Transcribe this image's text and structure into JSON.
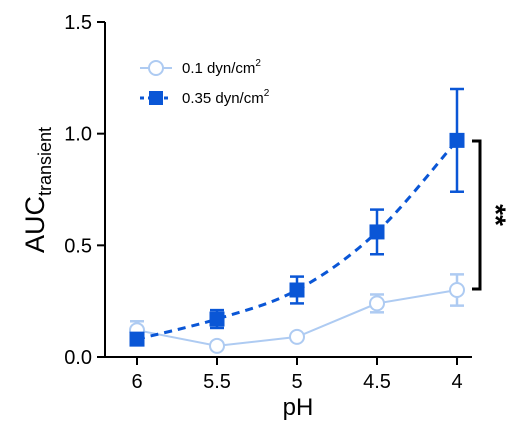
{
  "chart_data": {
    "type": "line",
    "categories": [
      "6",
      "5.5",
      "5",
      "4.5",
      "4"
    ],
    "xlabel": "pH",
    "ylabel": {
      "main": "AUC",
      "subscript": "transient"
    },
    "ylim": [
      0,
      1.5
    ],
    "yticks": [
      "0.0",
      "0.5",
      "1.0",
      "1.5"
    ],
    "grid": false,
    "legend_position": "top-left",
    "series": [
      {
        "name": "0.1 dyn/cm",
        "name_superscript": "2",
        "color": "#aecbf2",
        "marker": "open-circle",
        "line_style": "solid",
        "values": [
          0.12,
          0.05,
          0.09,
          0.24,
          0.3
        ],
        "errors": [
          0.04,
          0.01,
          0.01,
          0.04,
          0.07
        ]
      },
      {
        "name": "0.35 dyn/cm",
        "name_superscript": "2",
        "color": "#0a56d6",
        "marker": "filled-square",
        "line_style": "dashed",
        "fit": "smooth-curve",
        "values": [
          0.08,
          0.17,
          0.3,
          0.56,
          0.97
        ],
        "errors": [
          0.02,
          0.04,
          0.06,
          0.1,
          0.23
        ]
      }
    ],
    "annotation": {
      "text": "**",
      "between": "series at pH 4"
    }
  }
}
